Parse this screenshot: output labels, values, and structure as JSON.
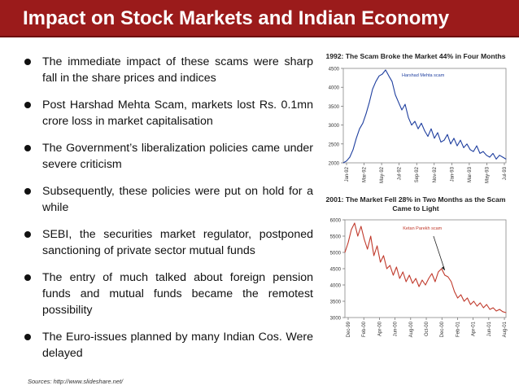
{
  "header": {
    "title": "Impact on Stock Markets and Indian Economy",
    "bar_color": "#9b1b1b"
  },
  "bullets": [
    "The immediate impact of these scams were sharp fall in the share prices and indices",
    "Post Harshad Mehta Scam, markets lost Rs. 0.1mn crore loss in market capitalisation",
    "The Government’s liberalization policies came under severe criticism",
    "Subsequently, these policies were put on hold for  a while",
    "SEBI,  the  securities  market  regulator, postponed sanctioning of private sector mutual funds",
    "The entry of much talked about foreign pension funds and mutual funds became the remotest possibility",
    "The Euro-issues planned by many   Indian Cos. Were delayed"
  ],
  "footer": {
    "sources": "Sources: http://www.slideshare.net/"
  },
  "chart_data": [
    {
      "type": "line",
      "title": "1992: The Scam Broke the Market 44% in Four Months",
      "annotation": "Harshad Mehta scam",
      "color": "#1f3f9f",
      "xlabel": "",
      "ylabel": "",
      "ylim": [
        2000,
        4500
      ],
      "y_ticks": [
        2000,
        2500,
        3000,
        3500,
        4000,
        4500
      ],
      "x_ticks": [
        "Jan-92",
        "Mar-92",
        "May-92",
        "Jul-92",
        "Sep-92",
        "Nov-92",
        "Jan-93",
        "Mar-93",
        "May-93",
        "Jul-93"
      ],
      "x": [
        0,
        2,
        4,
        6,
        8,
        10,
        12,
        14,
        16,
        18,
        20,
        22,
        24,
        26,
        28,
        30,
        32,
        34,
        36,
        38,
        40,
        42,
        44,
        46,
        48,
        50,
        52,
        54,
        56,
        58,
        60,
        62,
        64,
        66,
        68,
        70,
        72,
        74,
        76,
        78,
        80,
        82,
        84,
        86,
        88,
        90,
        92,
        94,
        96,
        98,
        100
      ],
      "values": [
        2000,
        2050,
        2150,
        2350,
        2650,
        2900,
        3050,
        3300,
        3600,
        3950,
        4150,
        4300,
        4350,
        4460,
        4300,
        4150,
        3800,
        3600,
        3400,
        3550,
        3200,
        3000,
        3100,
        2900,
        3050,
        2850,
        2700,
        2900,
        2650,
        2800,
        2550,
        2600,
        2750,
        2500,
        2650,
        2450,
        2600,
        2400,
        2500,
        2350,
        2300,
        2450,
        2250,
        2300,
        2200,
        2150,
        2250,
        2100,
        2200,
        2150,
        2100
      ]
    },
    {
      "type": "line",
      "title": "2001: The Market Fell 28% in Two Months as the Scam Came to Light",
      "annotation": "Ketan Parekh scam",
      "color": "#c0392b",
      "xlabel": "",
      "ylabel": "",
      "ylim": [
        3000,
        6000
      ],
      "y_ticks": [
        3000,
        3500,
        4000,
        4500,
        5000,
        5500,
        6000
      ],
      "x_ticks": [
        "Dec-99",
        "Feb-00",
        "Apr-00",
        "Jun-00",
        "Aug-00",
        "Oct-00",
        "Dec-00",
        "Feb-01",
        "Apr-01",
        "Jun-01",
        "Aug-01"
      ],
      "x": [
        0,
        2,
        4,
        6,
        8,
        10,
        12,
        14,
        16,
        18,
        20,
        22,
        24,
        26,
        28,
        30,
        32,
        34,
        36,
        38,
        40,
        42,
        44,
        46,
        48,
        50,
        52,
        54,
        56,
        58,
        60,
        62,
        64,
        66,
        68,
        70,
        72,
        74,
        76,
        78,
        80,
        82,
        84,
        86,
        88,
        90,
        92,
        94,
        96,
        98,
        100
      ],
      "values": [
        5000,
        5300,
        5700,
        5900,
        5500,
        5800,
        5400,
        5100,
        5500,
        4900,
        5200,
        4700,
        4900,
        4500,
        4600,
        4300,
        4550,
        4200,
        4400,
        4100,
        4300,
        4050,
        4200,
        3950,
        4150,
        4000,
        4200,
        4350,
        4100,
        4400,
        4500,
        4300,
        4250,
        4100,
        3800,
        3600,
        3700,
        3500,
        3600,
        3400,
        3500,
        3350,
        3450,
        3300,
        3400,
        3250,
        3300,
        3200,
        3250,
        3180,
        3150
      ]
    }
  ]
}
